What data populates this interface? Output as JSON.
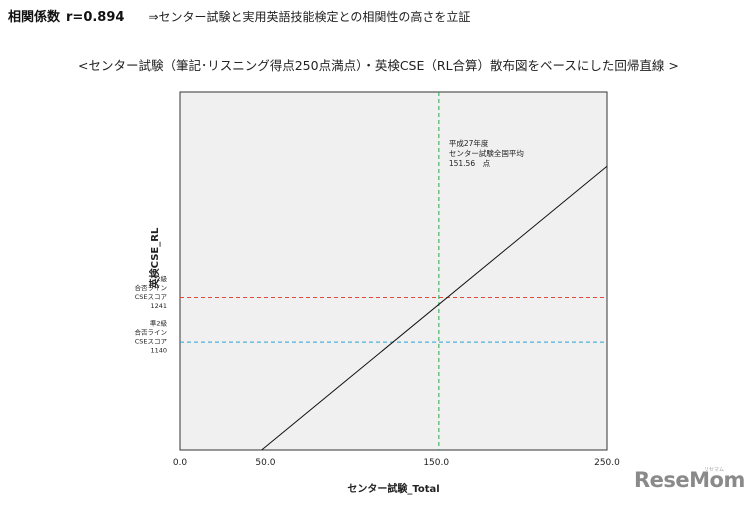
{
  "header": {
    "corr_label": "相関係数",
    "corr_value": "r=0.894",
    "claim": "⇒センター試験と実用英語技能検定との相関性の高さを立証"
  },
  "subtitle": "<センター試験（筆記･リスニング得点250点満点）・英検CSE（RL合算）散布図をベースにした回帰直線 >",
  "brand": {
    "logo": "ReseMom",
    "logo_small": "リセマム"
  },
  "chart_data": {
    "type": "line",
    "xlabel": "センター試験_Total",
    "ylabel": "英検CSE_RL",
    "xlim": [
      0,
      250
    ],
    "ylim": [
      896,
      1706
    ],
    "x_ticks": [
      "0.0",
      "50.0",
      "150.0",
      "250.0"
    ],
    "grid": false,
    "series": [
      {
        "kind": "regression",
        "x": [
          47.8,
          250
        ],
        "y": [
          896,
          1538
        ],
        "color": "#111111"
      }
    ],
    "reference_lines": [
      {
        "orientation": "vertical",
        "x": 151.56,
        "color": "#2aa84a",
        "label": [
          "平成27年度",
          "センター試験全国平均",
          "151.56　点"
        ]
      },
      {
        "orientation": "horizontal",
        "y": 1241,
        "color": "#e04a3a",
        "label": [
          "2級",
          "合否ライン",
          "CSEスコア",
          "1241"
        ]
      },
      {
        "orientation": "horizontal",
        "y": 1140,
        "color": "#2a9fd6",
        "label": [
          "準2級",
          "合否ライン",
          "CSEスコア",
          "1140"
        ]
      }
    ]
  }
}
